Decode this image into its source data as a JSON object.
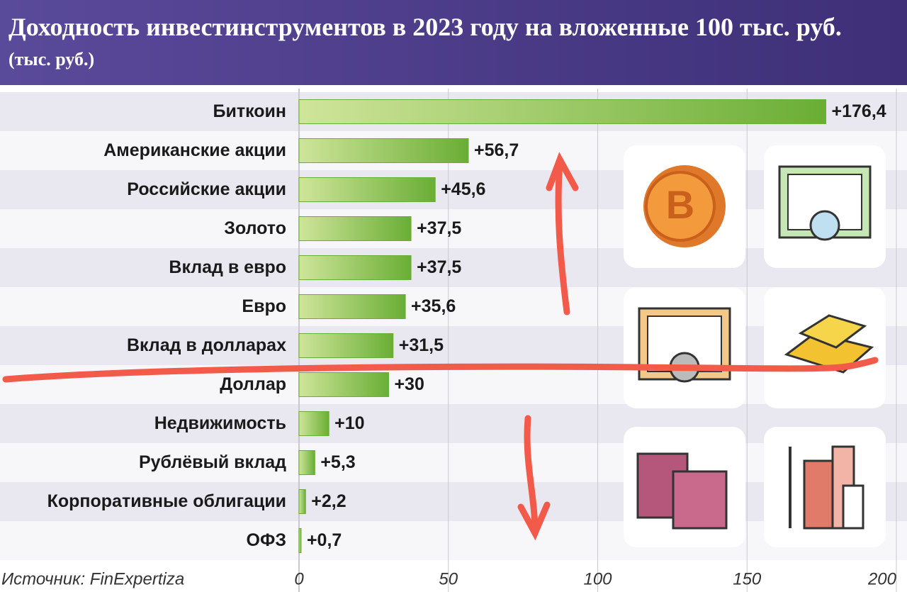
{
  "chart_data": {
    "type": "hbar",
    "title": "Доходность инвестинструментов в 2023 году на вложенные 100 тыс. руб.",
    "subtitle": "(тыс. руб.)",
    "source": "Источник: FinExpertiza",
    "categories": [
      "Биткоин",
      "Американские акции",
      "Российские акции",
      "Золото",
      "Вклад в евро",
      "Евро",
      "Вклад в долларах",
      "Доллар",
      "Недвижимость",
      "Рублёвый вклад",
      "Корпоративные облигации",
      "ОФЗ"
    ],
    "values": [
      176.4,
      56.7,
      45.6,
      37.5,
      37.5,
      35.6,
      31.5,
      30,
      10,
      5.3,
      2.2,
      0.7
    ],
    "value_labels": [
      "+176,4",
      "+56,7",
      "+45,6",
      "+37,5",
      "+37,5",
      "+35,6",
      "+31,5",
      "+30",
      "+10",
      "+5,3",
      "+2,2",
      "+0,7"
    ],
    "color": "#6aae35",
    "xlim": [
      0,
      200
    ],
    "xticks": [
      0,
      50,
      100,
      150,
      200
    ],
    "grid": true
  }
}
